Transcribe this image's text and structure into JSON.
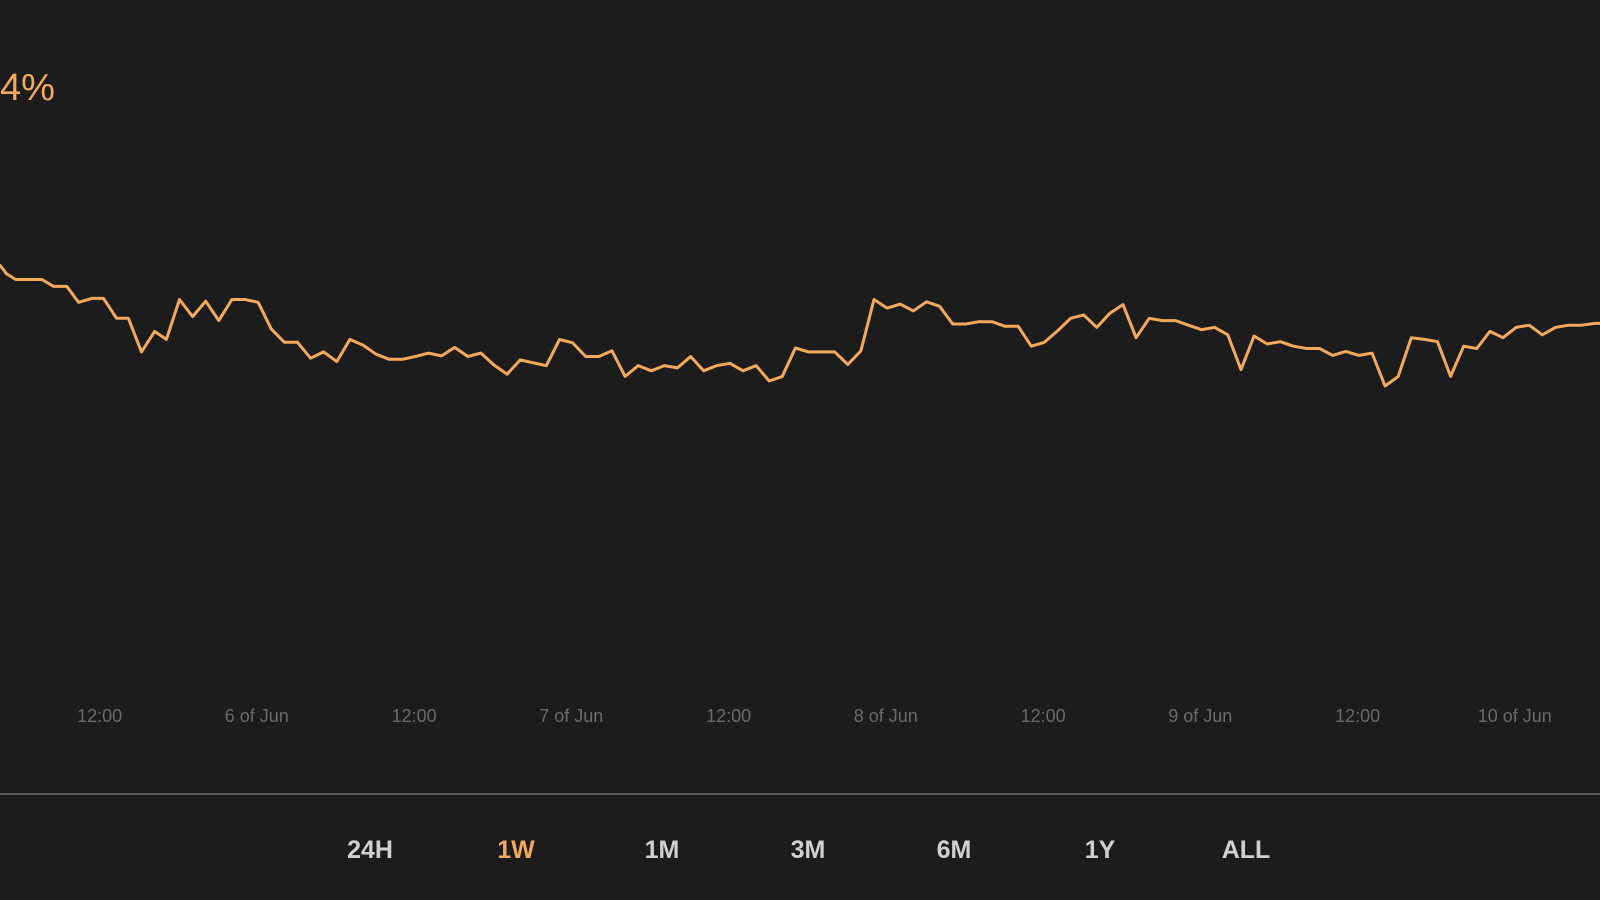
{
  "change": {
    "text": "4%",
    "color": "#f4a95a"
  },
  "colors": {
    "background": "#1c1c1c",
    "line": "#f4a95a",
    "tick_text": "#6a6a6a",
    "divider": "#5a5a5a",
    "range_text": "#d0d0d0",
    "range_active": "#f4a95a"
  },
  "chart_data": {
    "type": "line",
    "title": "",
    "xlabel": "",
    "ylabel": "",
    "grid": false,
    "legend": "none",
    "x_unit": "hours",
    "x_ticks": [
      {
        "x": 12,
        "label": "12:00"
      },
      {
        "x": 24,
        "label": "6 of Jun"
      },
      {
        "x": 36,
        "label": "12:00"
      },
      {
        "x": 48,
        "label": "7 of Jun"
      },
      {
        "x": 60,
        "label": "12:00"
      },
      {
        "x": 72,
        "label": "8 of Jun"
      },
      {
        "x": 84,
        "label": "12:00"
      },
      {
        "x": 96,
        "label": "9 of Jun"
      },
      {
        "x": 108,
        "label": "12:00"
      },
      {
        "x": 120,
        "label": "10 of Jun"
      }
    ],
    "xlim": [
      4.4,
      126.5
    ],
    "ylim": [
      0,
      100
    ],
    "series": [
      {
        "values": [
          [
            4.4,
            71
          ],
          [
            4.9,
            69.5
          ],
          [
            5.6,
            68.5
          ],
          [
            6.6,
            68.5
          ],
          [
            7.6,
            68.5
          ],
          [
            8.5,
            67.3
          ],
          [
            9.5,
            67.3
          ],
          [
            10.4,
            64.5
          ],
          [
            11.4,
            65.2
          ],
          [
            12.3,
            65.2
          ],
          [
            13.3,
            61.7
          ],
          [
            14.2,
            61.7
          ],
          [
            15.2,
            55.8
          ],
          [
            16.2,
            59.4
          ],
          [
            17.1,
            58
          ],
          [
            18.1,
            65
          ],
          [
            19.1,
            62
          ],
          [
            20.1,
            64.7
          ],
          [
            21.1,
            61.3
          ],
          [
            22.1,
            65
          ],
          [
            23.1,
            65
          ],
          [
            24.1,
            64.5
          ],
          [
            25.1,
            59.8
          ],
          [
            26.1,
            57.5
          ],
          [
            27.1,
            57.5
          ],
          [
            28.1,
            54.7
          ],
          [
            29.1,
            55.8
          ],
          [
            30.1,
            54.1
          ],
          [
            31.1,
            58
          ],
          [
            32.1,
            57
          ],
          [
            33.1,
            55.4
          ],
          [
            34.1,
            54.5
          ],
          [
            35.1,
            54.5
          ],
          [
            36.1,
            55
          ],
          [
            37.1,
            55.6
          ],
          [
            38.1,
            55.1
          ],
          [
            39.1,
            56.6
          ],
          [
            40.1,
            55
          ],
          [
            41.1,
            55.6
          ],
          [
            42.1,
            53.5
          ],
          [
            43.1,
            51.9
          ],
          [
            44.1,
            54.4
          ],
          [
            45.1,
            53.9
          ],
          [
            46.1,
            53.4
          ],
          [
            47.1,
            58
          ],
          [
            48.1,
            57.4
          ],
          [
            49.1,
            55
          ],
          [
            50.1,
            55
          ],
          [
            51.1,
            56
          ],
          [
            52.1,
            51.5
          ],
          [
            53.1,
            53.4
          ],
          [
            54.1,
            52.5
          ],
          [
            55.1,
            53.4
          ],
          [
            56.1,
            53
          ],
          [
            57.1,
            55
          ],
          [
            58.1,
            52.5
          ],
          [
            59.1,
            53.4
          ],
          [
            60.1,
            53.8
          ],
          [
            61.1,
            52.5
          ],
          [
            62.1,
            53.4
          ],
          [
            63.1,
            50.7
          ],
          [
            64.1,
            51.5
          ],
          [
            65.1,
            56.5
          ],
          [
            66.1,
            55.8
          ],
          [
            67.1,
            55.8
          ],
          [
            68.1,
            55.8
          ],
          [
            69.1,
            53.6
          ],
          [
            70.1,
            56
          ],
          [
            71.1,
            65
          ],
          [
            72.1,
            63.5
          ],
          [
            73.1,
            64.2
          ],
          [
            74.1,
            63
          ],
          [
            75.1,
            64.6
          ],
          [
            76.1,
            63.8
          ],
          [
            77.1,
            60.7
          ],
          [
            78.1,
            60.7
          ],
          [
            79.1,
            61.1
          ],
          [
            80.1,
            61.1
          ],
          [
            81.1,
            60.3
          ],
          [
            82.1,
            60.3
          ],
          [
            83.1,
            56.8
          ],
          [
            84.1,
            57.5
          ],
          [
            85.1,
            59.5
          ],
          [
            86.1,
            61.7
          ],
          [
            87.1,
            62.3
          ],
          [
            88.1,
            60.1
          ],
          [
            89.1,
            62.6
          ],
          [
            90.1,
            64.1
          ],
          [
            91.1,
            58.3
          ],
          [
            92.1,
            61.7
          ],
          [
            93.1,
            61.3
          ],
          [
            94.1,
            61.3
          ],
          [
            95.1,
            60.5
          ],
          [
            96.1,
            59.7
          ],
          [
            97.1,
            60.1
          ],
          [
            98.1,
            58.8
          ],
          [
            99.1,
            52.7
          ],
          [
            100.1,
            58.6
          ],
          [
            101.1,
            57.2
          ],
          [
            102.1,
            57.6
          ],
          [
            103.1,
            56.8
          ],
          [
            104.1,
            56.4
          ],
          [
            105.1,
            56.4
          ],
          [
            106.1,
            55.2
          ],
          [
            107.1,
            55.9
          ],
          [
            108.1,
            55.2
          ],
          [
            109.1,
            55.6
          ],
          [
            110.1,
            49.8
          ],
          [
            111.1,
            51.5
          ],
          [
            112.1,
            58.3
          ],
          [
            113.1,
            58
          ],
          [
            114.1,
            57.6
          ],
          [
            115.1,
            51.5
          ],
          [
            116.1,
            56.8
          ],
          [
            117.1,
            56.4
          ],
          [
            118.1,
            59.4
          ],
          [
            119.1,
            58.3
          ],
          [
            120.1,
            60.1
          ],
          [
            121.1,
            60.5
          ],
          [
            122.1,
            58.8
          ],
          [
            123.1,
            60.1
          ],
          [
            124.1,
            60.5
          ],
          [
            125.1,
            60.5
          ],
          [
            126.1,
            60.8
          ],
          [
            126.5,
            60.8
          ]
        ]
      }
    ]
  },
  "range_selector": {
    "active": "1W",
    "options": [
      "24H",
      "1W",
      "1M",
      "3M",
      "6M",
      "1Y",
      "ALL"
    ]
  }
}
